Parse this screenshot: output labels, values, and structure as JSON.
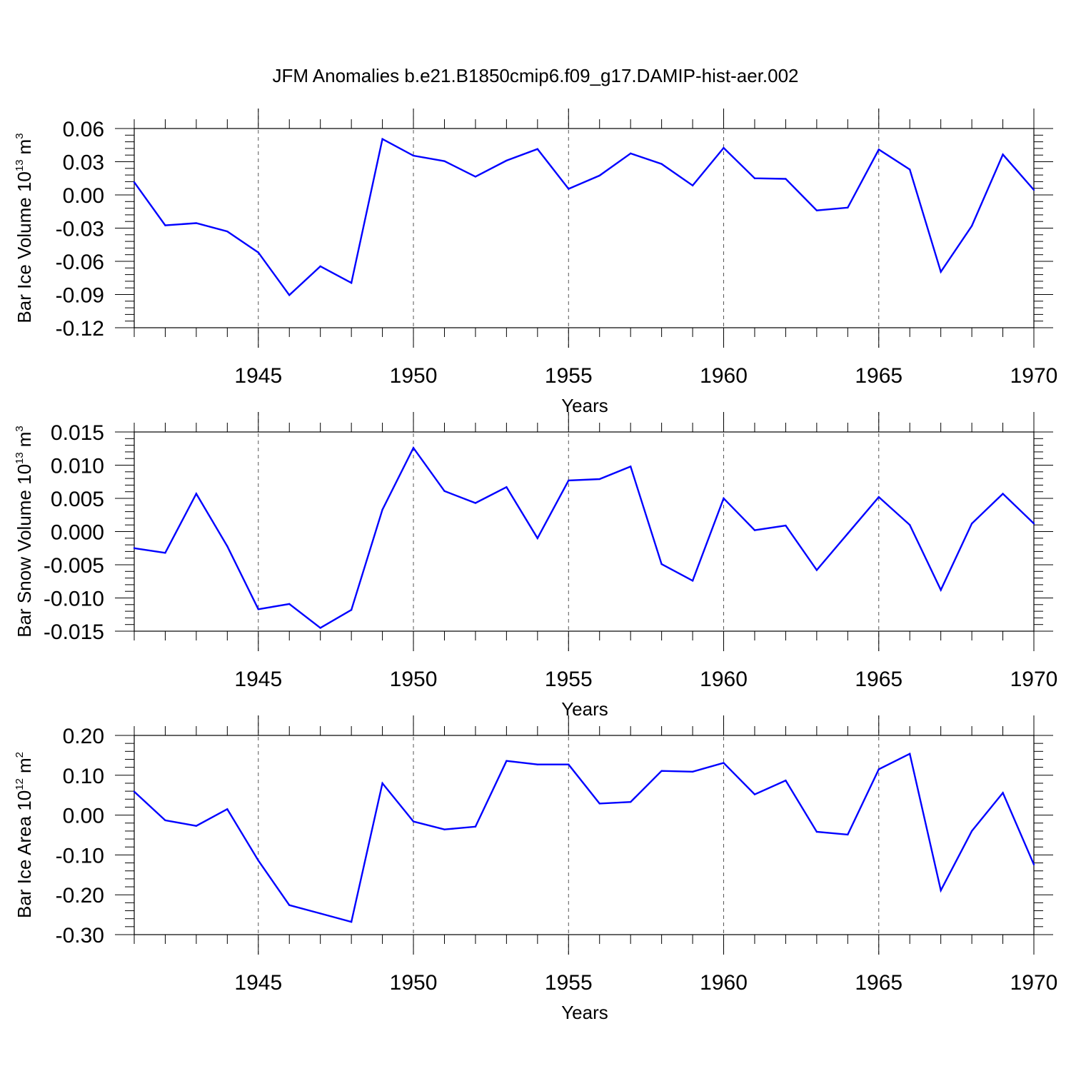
{
  "title": "JFM Anomalies b.e21.B1850cmip6.f09_g17.DAMIP-hist-aer.002",
  "colors": {
    "line": "#0000ff",
    "axis": "#000000",
    "grid": "#555555"
  },
  "chart_data": [
    {
      "type": "line",
      "ylabel": {
        "text": "Bar Ice Volume 10",
        "exponent": "13",
        "unit": "m",
        "unit_exponent": "3"
      },
      "xlabel": "Years",
      "xlim": [
        1941,
        1970
      ],
      "ylim": [
        -0.12,
        0.06
      ],
      "yticks": [
        "0.06",
        "0.03",
        "0.00",
        "-0.03",
        "-0.06",
        "-0.09",
        "-0.12"
      ],
      "xticks": [
        "1945",
        "1950",
        "1955",
        "1960",
        "1965",
        "1970"
      ],
      "x": [
        1941,
        1942,
        1943,
        1944,
        1945,
        1946,
        1947,
        1948,
        1949,
        1950,
        1951,
        1952,
        1953,
        1954,
        1955,
        1956,
        1957,
        1958,
        1959,
        1960,
        1961,
        1962,
        1963,
        1964,
        1965,
        1966,
        1967,
        1968,
        1969,
        1970
      ],
      "series": [
        {
          "name": "Bar Ice Volume",
          "values": [
            0.0115,
            -0.0275,
            -0.0255,
            -0.033,
            -0.052,
            -0.0905,
            -0.0645,
            -0.0795,
            0.0505,
            0.0355,
            0.0305,
            0.0165,
            0.031,
            0.0415,
            0.0055,
            0.0175,
            0.0375,
            0.028,
            0.0085,
            0.0425,
            0.015,
            0.0145,
            -0.014,
            -0.0115,
            0.041,
            0.023,
            -0.0695,
            -0.028,
            0.0365,
            0.0045
          ]
        }
      ]
    },
    {
      "type": "line",
      "ylabel": {
        "text": "Bar Snow Volume 10",
        "exponent": "13",
        "unit": "m",
        "unit_exponent": "3"
      },
      "xlabel": "Years",
      "xlim": [
        1941,
        1970
      ],
      "ylim": [
        -0.015,
        0.015
      ],
      "yticks": [
        "0.015",
        "0.010",
        "0.005",
        "0.000",
        "-0.005",
        "-0.010",
        "-0.015"
      ],
      "xticks": [
        "1945",
        "1950",
        "1955",
        "1960",
        "1965",
        "1970"
      ],
      "x": [
        1941,
        1942,
        1943,
        1944,
        1945,
        1946,
        1947,
        1948,
        1949,
        1950,
        1951,
        1952,
        1953,
        1954,
        1955,
        1956,
        1957,
        1958,
        1959,
        1960,
        1961,
        1962,
        1963,
        1964,
        1965,
        1966,
        1967,
        1968,
        1969,
        1970
      ],
      "series": [
        {
          "name": "Bar Snow Volume",
          "values": [
            -0.0025,
            -0.0032,
            0.0057,
            -0.0022,
            -0.0117,
            -0.0109,
            -0.0145,
            -0.0118,
            0.0033,
            0.0126,
            0.0061,
            0.0043,
            0.0067,
            -0.001,
            0.0077,
            0.0079,
            0.0098,
            -0.0049,
            -0.0074,
            0.005,
            0.0002,
            0.0009,
            -0.0058,
            -0.0003,
            0.0052,
            0.001,
            -0.0088,
            0.0012,
            0.0057,
            0.0012
          ]
        }
      ]
    },
    {
      "type": "line",
      "ylabel": {
        "text": "Bar Ice Area 10",
        "exponent": "12",
        "unit": "m",
        "unit_exponent": "2"
      },
      "xlabel": "Years",
      "xlim": [
        1941,
        1970
      ],
      "ylim": [
        -0.3,
        0.2
      ],
      "yticks": [
        "0.20",
        "0.10",
        "0.00",
        "-0.10",
        "-0.20",
        "-0.30"
      ],
      "xticks": [
        "1945",
        "1950",
        "1955",
        "1960",
        "1965",
        "1970"
      ],
      "x": [
        1941,
        1942,
        1943,
        1944,
        1945,
        1946,
        1947,
        1948,
        1949,
        1950,
        1951,
        1952,
        1953,
        1954,
        1955,
        1956,
        1957,
        1958,
        1959,
        1960,
        1961,
        1962,
        1963,
        1964,
        1965,
        1966,
        1967,
        1968,
        1969,
        1970
      ],
      "series": [
        {
          "name": "Bar Ice Area",
          "values": [
            0.059,
            -0.013,
            -0.027,
            0.015,
            -0.114,
            -0.226,
            -0.247,
            -0.268,
            0.08,
            -0.016,
            -0.036,
            -0.029,
            0.136,
            0.127,
            0.127,
            0.029,
            0.033,
            0.111,
            0.109,
            0.131,
            0.052,
            0.087,
            -0.042,
            -0.049,
            0.115,
            0.154,
            -0.189,
            -0.04,
            0.056,
            -0.124
          ]
        }
      ]
    }
  ]
}
